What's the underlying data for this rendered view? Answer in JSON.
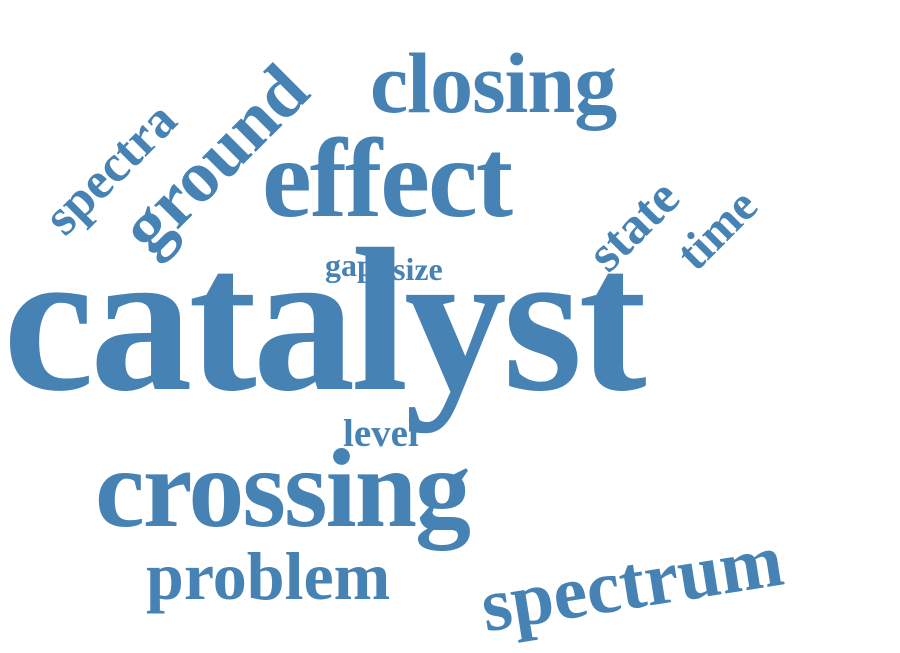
{
  "word_cloud": {
    "color": "#4682b4",
    "words": {
      "catalyst": "catalyst",
      "crossing": "crossing",
      "effect": "effect",
      "closing": "closing",
      "problem": "problem",
      "spectrum": "spectrum",
      "ground": "ground",
      "spectra": "spectra",
      "state": "state",
      "time": "time",
      "gap": "gap",
      "size": "size",
      "level": "level"
    }
  }
}
